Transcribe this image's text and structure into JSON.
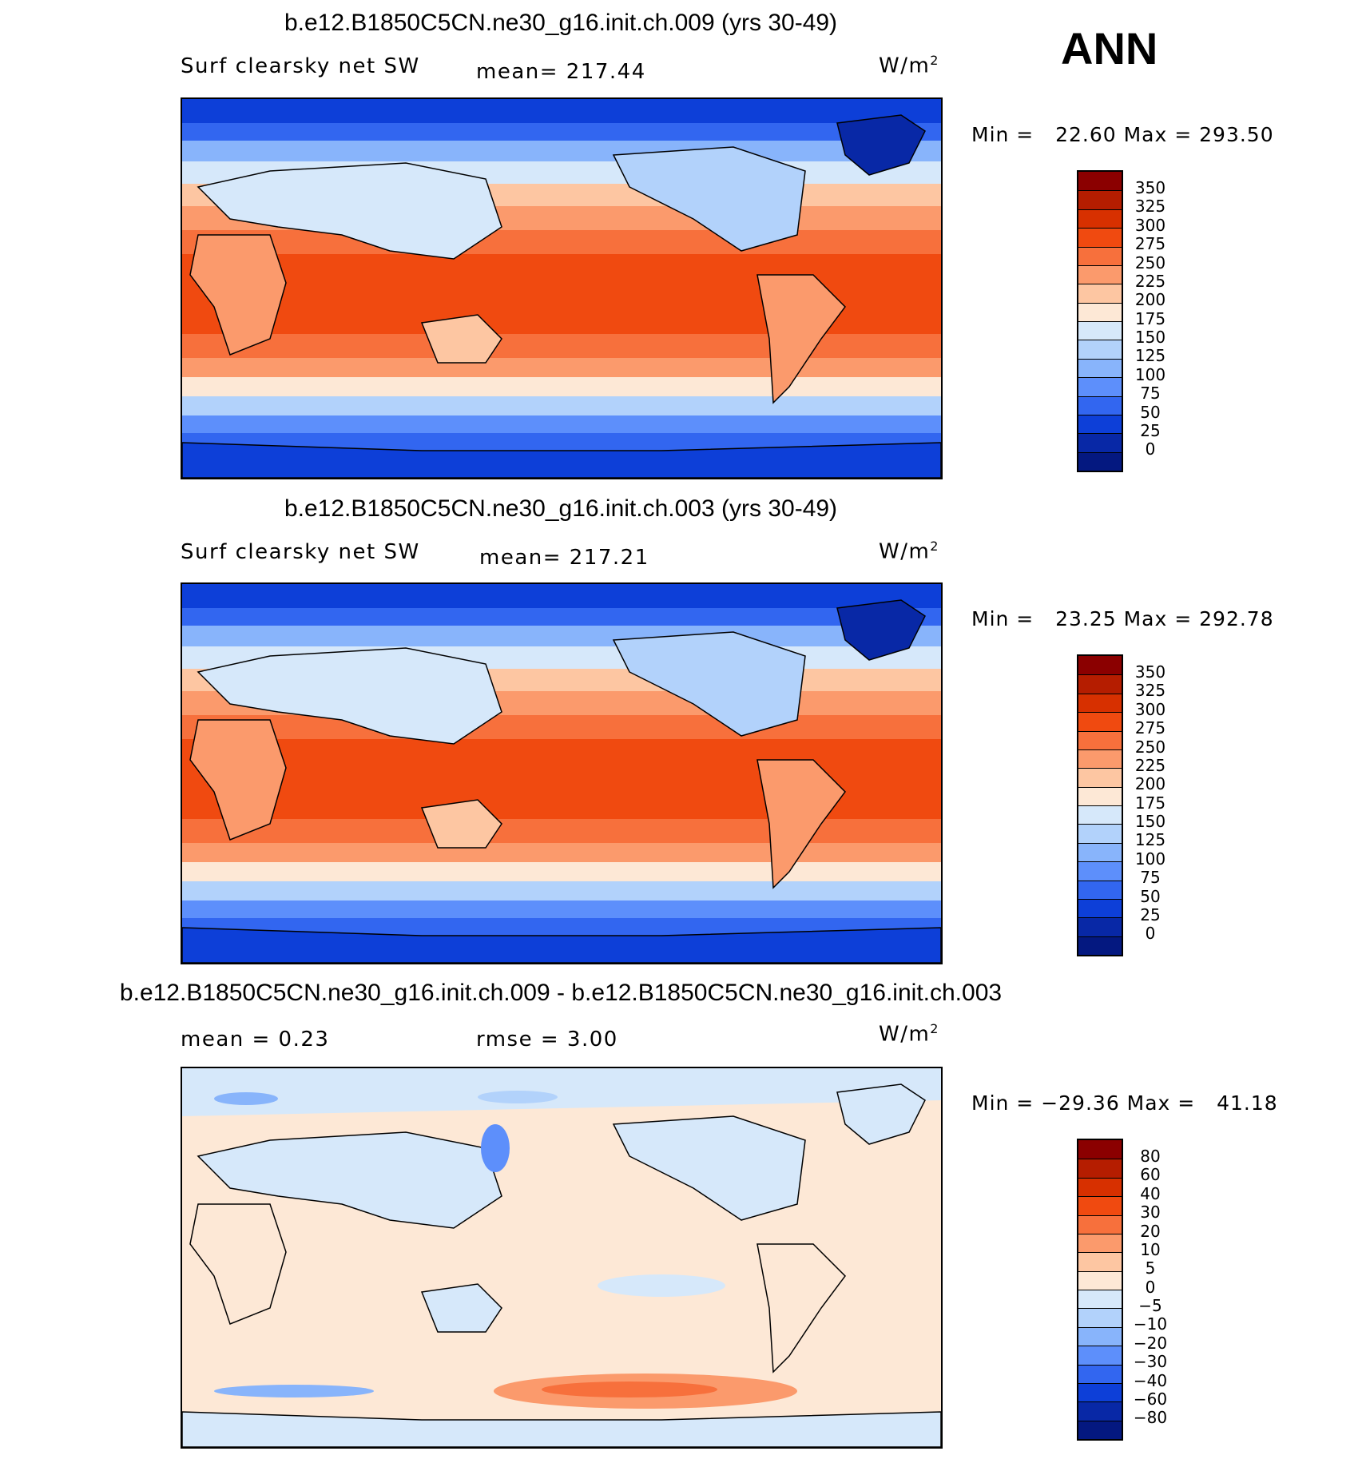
{
  "season": "ANN",
  "panels": [
    {
      "title": "b.e12.B1850C5CN.ne30_g16.init.ch.009 (yrs 30-49)",
      "left_label": "Surf clearsky net SW",
      "mid_label": "mean= 217.44",
      "unit_base": "W/m",
      "unit_exp": "2",
      "min_max": "Min =   22.60 Max = 293.50",
      "colorbar": {
        "labels": [
          "350",
          "325",
          "300",
          "275",
          "250",
          "225",
          "200",
          "175",
          "150",
          "125",
          "100",
          "75",
          "50",
          "25",
          "0"
        ],
        "colors": [
          "#8b0000",
          "#b51d00",
          "#d73000",
          "#f04a10",
          "#f7703c",
          "#fb9a6c",
          "#fdc6a2",
          "#fde8d6",
          "#d6e8fa",
          "#b2d2fb",
          "#88b4fb",
          "#5d8ffb",
          "#3266f0",
          "#0d3fd8",
          "#0828a6",
          "#041880"
        ]
      }
    },
    {
      "title": "b.e12.B1850C5CN.ne30_g16.init.ch.003 (yrs 30-49)",
      "left_label": "Surf clearsky net SW",
      "mid_label": "mean= 217.21",
      "unit_base": "W/m",
      "unit_exp": "2",
      "min_max": "Min =   23.25 Max = 292.78",
      "colorbar": {
        "labels": [
          "350",
          "325",
          "300",
          "275",
          "250",
          "225",
          "200",
          "175",
          "150",
          "125",
          "100",
          "75",
          "50",
          "25",
          "0"
        ],
        "colors": [
          "#8b0000",
          "#b51d00",
          "#d73000",
          "#f04a10",
          "#f7703c",
          "#fb9a6c",
          "#fdc6a2",
          "#fde8d6",
          "#d6e8fa",
          "#b2d2fb",
          "#88b4fb",
          "#5d8ffb",
          "#3266f0",
          "#0d3fd8",
          "#0828a6",
          "#041880"
        ]
      }
    },
    {
      "title": "b.e12.B1850C5CN.ne30_g16.init.ch.009 - b.e12.B1850C5CN.ne30_g16.init.ch.003",
      "left_label": "mean =    0.23",
      "mid_label": "rmse =    3.00",
      "unit_base": "W/m",
      "unit_exp": "2",
      "min_max": "Min = −29.36 Max =   41.18",
      "colorbar": {
        "labels": [
          "80",
          "60",
          "40",
          "30",
          "20",
          "10",
          "5",
          "0",
          "−5",
          "−10",
          "−20",
          "−30",
          "−40",
          "−60",
          "−80"
        ],
        "colors": [
          "#8b0000",
          "#b51d00",
          "#d73000",
          "#f04a10",
          "#f7703c",
          "#fb9a6c",
          "#fdc6a2",
          "#fde8d6",
          "#d6e8fa",
          "#b2d2fb",
          "#88b4fb",
          "#5d8ffb",
          "#3266f0",
          "#0d3fd8",
          "#0828a6",
          "#041880"
        ]
      }
    }
  ]
}
